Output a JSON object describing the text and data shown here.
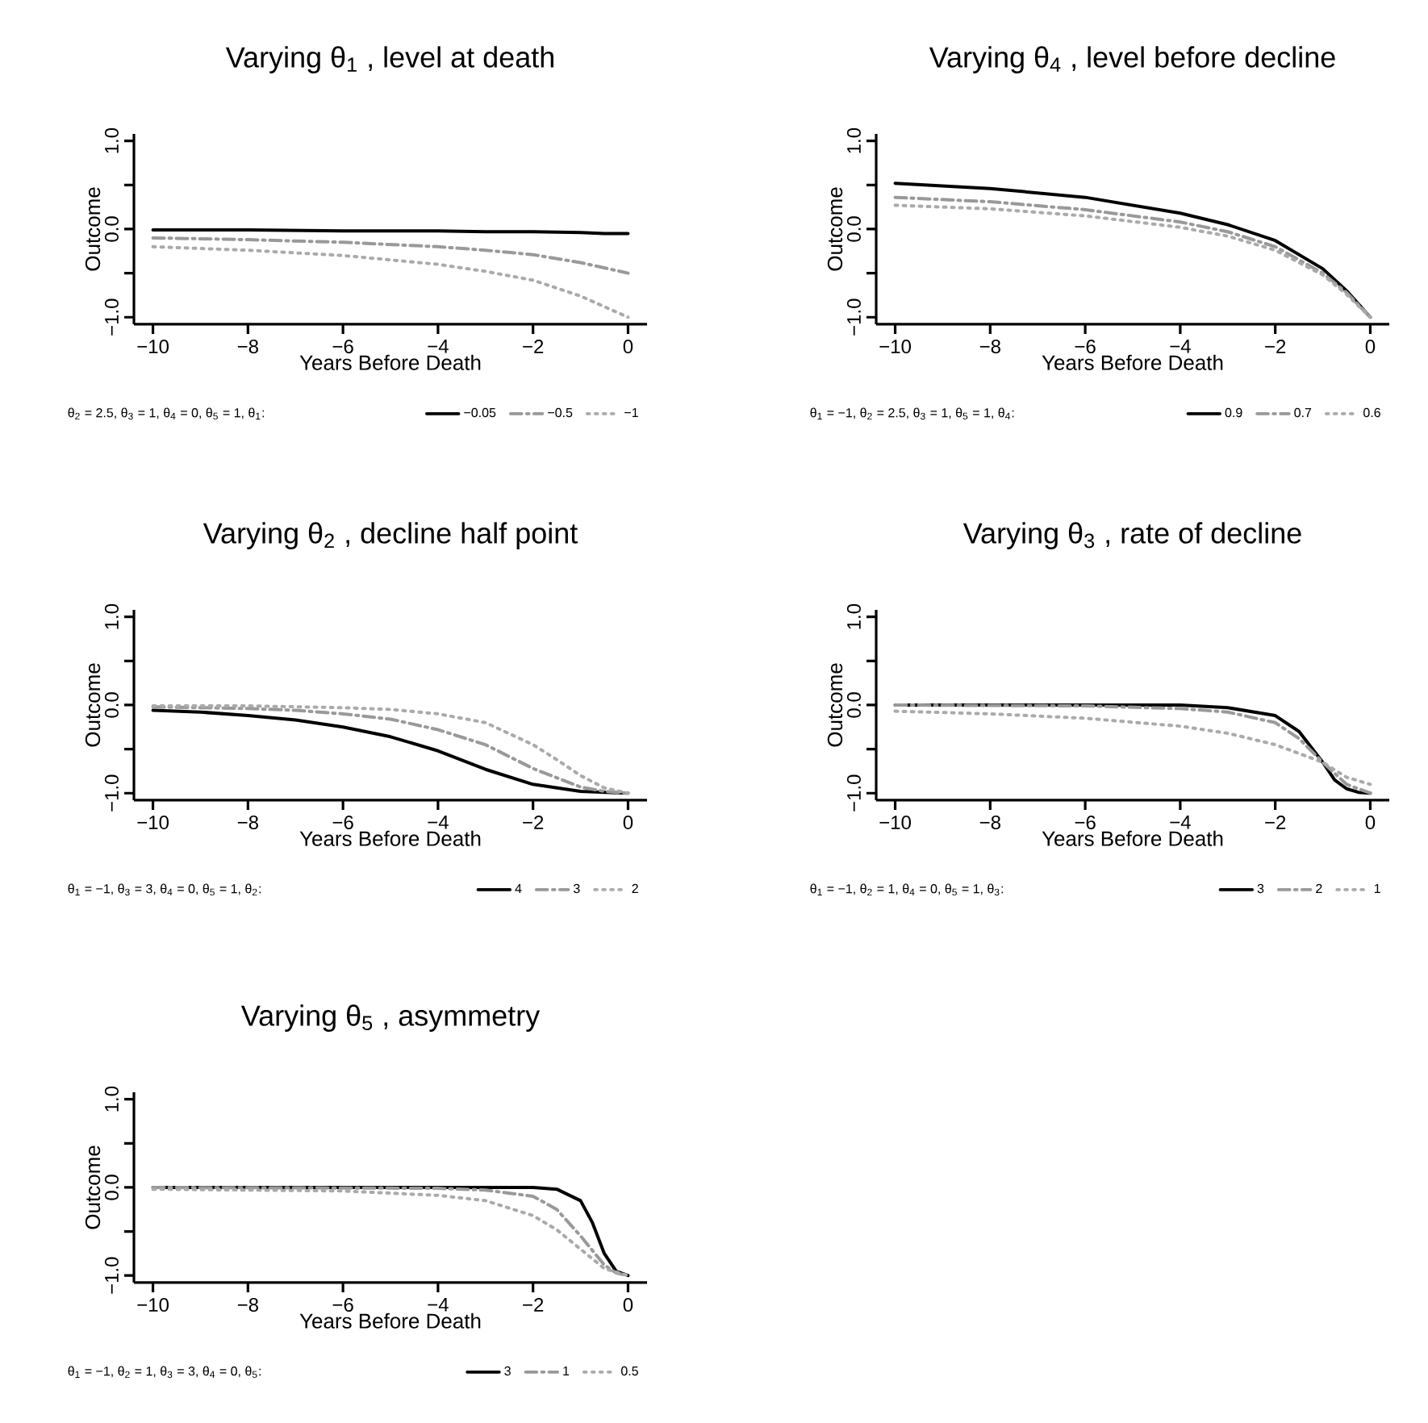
{
  "chart_data": [
    {
      "type": "line",
      "title": "Varying θ$_{1}$ , level at death",
      "xlabel": "Years Before Death",
      "ylabel": "Outcome",
      "legend_title": "θ$_{2}$ = 2.5, θ$_{3}$ = 1, θ$_{4}$ = 0, θ$_{5}$ = 1, θ$_{1}$:",
      "legend": "bottom",
      "xlim": [
        -10.4,
        0.4
      ],
      "ylim": [
        -1.08,
        1.08
      ],
      "xticks": [
        {
          "value": -10,
          "label": "−10"
        },
        {
          "value": -8,
          "label": "−8"
        },
        {
          "value": -6,
          "label": "−6"
        },
        {
          "value": -4,
          "label": "−4"
        },
        {
          "value": -2,
          "label": "−2"
        },
        0
      ],
      "yticks": [
        {
          "value": -1,
          "label": "−1.0"
        },
        {
          "value": -0.5,
          "label": null
        },
        {
          "value": 0,
          "label": "0.0"
        },
        {
          "value": 0.5,
          "label": null
        },
        {
          "value": 1,
          "label": "1.0"
        }
      ],
      "series": [
        {
          "name": "−0.05",
          "color": "#000000",
          "line_style": "solid",
          "x": [
            -10,
            -8,
            -6,
            -4,
            -3,
            -2,
            -1,
            -0.5,
            0
          ],
          "values": [
            -0.01,
            -0.01,
            -0.02,
            -0.02,
            -0.03,
            -0.03,
            -0.04,
            -0.05,
            -0.05
          ]
        },
        {
          "name": "−0.5",
          "color": "#999999",
          "line_style": "dashed",
          "x": [
            -10,
            -8,
            -6,
            -4,
            -3,
            -2,
            -1,
            -0.5,
            0
          ],
          "values": [
            -0.1,
            -0.12,
            -0.15,
            -0.2,
            -0.24,
            -0.29,
            -0.38,
            -0.44,
            -0.5
          ]
        },
        {
          "name": "−1",
          "color": "#aaaaaa",
          "line_style": "dotted",
          "x": [
            -10,
            -8,
            -6,
            -4,
            -3,
            -2,
            -1,
            -0.5,
            0
          ],
          "values": [
            -0.2,
            -0.24,
            -0.3,
            -0.4,
            -0.48,
            -0.58,
            -0.76,
            -0.88,
            -1.0
          ]
        }
      ]
    },
    {
      "type": "line",
      "title": "Varying θ$_{4}$ , level before decline",
      "xlabel": "Years Before Death",
      "ylabel": "Outcome",
      "legend_title": "θ$_{1}$ = −1, θ$_{2}$ = 2.5, θ$_{3}$ = 1, θ$_{5}$ = 1, θ$_{4}$:",
      "legend": "bottom",
      "xlim": [
        -10.4,
        0.4
      ],
      "ylim": [
        -1.08,
        1.08
      ],
      "xticks": [
        {
          "value": -10,
          "label": "−10"
        },
        {
          "value": -8,
          "label": "−8"
        },
        {
          "value": -6,
          "label": "−6"
        },
        {
          "value": -4,
          "label": "−4"
        },
        {
          "value": -2,
          "label": "−2"
        },
        0
      ],
      "yticks": [
        {
          "value": -1,
          "label": "−1.0"
        },
        {
          "value": -0.5,
          "label": null
        },
        {
          "value": 0,
          "label": "0.0"
        },
        {
          "value": 0.5,
          "label": null
        },
        {
          "value": 1,
          "label": "1.0"
        }
      ],
      "series": [
        {
          "name": "0.9",
          "color": "#000000",
          "line_style": "solid",
          "x": [
            -10,
            -8,
            -6,
            -4,
            -3,
            -2,
            -1,
            -0.5,
            0
          ],
          "values": [
            0.52,
            0.46,
            0.36,
            0.18,
            0.05,
            -0.13,
            -0.45,
            -0.7,
            -1.0
          ]
        },
        {
          "name": "0.7",
          "color": "#999999",
          "line_style": "dashed",
          "x": [
            -10,
            -8,
            -6,
            -4,
            -3,
            -2,
            -1,
            -0.5,
            0
          ],
          "values": [
            0.36,
            0.31,
            0.22,
            0.08,
            -0.03,
            -0.2,
            -0.5,
            -0.72,
            -1.0
          ]
        },
        {
          "name": "0.6",
          "color": "#aaaaaa",
          "line_style": "dotted",
          "x": [
            -10,
            -8,
            -6,
            -4,
            -3,
            -2,
            -1,
            -0.5,
            0
          ],
          "values": [
            0.27,
            0.23,
            0.15,
            0.02,
            -0.08,
            -0.24,
            -0.52,
            -0.74,
            -1.0
          ]
        }
      ]
    },
    {
      "type": "line",
      "title": "Varying θ$_{2}$ , decline half point",
      "xlabel": "Years Before Death",
      "ylabel": "Outcome",
      "legend_title": "θ$_{1}$ = −1, θ$_{3}$ = 3, θ$_{4}$ = 0, θ$_{5}$ = 1, θ$_{2}$:",
      "legend": "bottom",
      "xlim": [
        -10.4,
        0.4
      ],
      "ylim": [
        -1.08,
        1.08
      ],
      "xticks": [
        {
          "value": -10,
          "label": "−10"
        },
        {
          "value": -8,
          "label": "−8"
        },
        {
          "value": -6,
          "label": "−6"
        },
        {
          "value": -4,
          "label": "−4"
        },
        {
          "value": -2,
          "label": "−2"
        },
        0
      ],
      "yticks": [
        {
          "value": -1,
          "label": "−1.0"
        },
        {
          "value": -0.5,
          "label": null
        },
        {
          "value": 0,
          "label": "0.0"
        },
        {
          "value": 0.5,
          "label": null
        },
        {
          "value": 1,
          "label": "1.0"
        }
      ],
      "series": [
        {
          "name": "4",
          "color": "#000000",
          "line_style": "solid",
          "x": [
            -10,
            -9,
            -8,
            -7,
            -6,
            -5,
            -4,
            -3,
            -2,
            -1,
            0
          ],
          "values": [
            -0.06,
            -0.08,
            -0.12,
            -0.17,
            -0.25,
            -0.36,
            -0.52,
            -0.73,
            -0.9,
            -0.98,
            -1.0
          ]
        },
        {
          "name": "3",
          "color": "#999999",
          "line_style": "dashed",
          "x": [
            -10,
            -8,
            -7,
            -6,
            -5,
            -4,
            -3,
            -2,
            -1,
            -0.5,
            0
          ],
          "values": [
            -0.02,
            -0.04,
            -0.06,
            -0.1,
            -0.16,
            -0.28,
            -0.45,
            -0.72,
            -0.93,
            -0.98,
            -1.0
          ]
        },
        {
          "name": "2",
          "color": "#aaaaaa",
          "line_style": "dotted",
          "x": [
            -10,
            -8,
            -6,
            -5,
            -4,
            -3,
            -2,
            -1.5,
            -1,
            -0.5,
            0
          ],
          "values": [
            -0.01,
            -0.01,
            -0.03,
            -0.05,
            -0.1,
            -0.2,
            -0.45,
            -0.62,
            -0.8,
            -0.94,
            -1.0
          ]
        }
      ]
    },
    {
      "type": "line",
      "title": "Varying θ$_{3}$ , rate of decline",
      "xlabel": "Years Before Death",
      "ylabel": "Outcome",
      "legend_title": "θ$_{1}$ = −1, θ$_{2}$ = 1, θ$_{4}$ = 0, θ$_{5}$ = 1, θ$_{3}$:",
      "legend": "bottom",
      "xlim": [
        -10.4,
        0.4
      ],
      "ylim": [
        -1.08,
        1.08
      ],
      "xticks": [
        {
          "value": -10,
          "label": "−10"
        },
        {
          "value": -8,
          "label": "−8"
        },
        {
          "value": -6,
          "label": "−6"
        },
        {
          "value": -4,
          "label": "−4"
        },
        {
          "value": -2,
          "label": "−2"
        },
        0
      ],
      "yticks": [
        {
          "value": -1,
          "label": "−1.0"
        },
        {
          "value": -0.5,
          "label": null
        },
        {
          "value": 0,
          "label": "0.0"
        },
        {
          "value": 0.5,
          "label": null
        },
        {
          "value": 1,
          "label": "1.0"
        }
      ],
      "series": [
        {
          "name": "3",
          "color": "#000000",
          "line_style": "solid",
          "x": [
            -10,
            -6,
            -4,
            -3,
            -2,
            -1.5,
            -1,
            -0.75,
            -0.5,
            -0.25,
            0
          ],
          "values": [
            0.0,
            0.0,
            0.0,
            -0.03,
            -0.12,
            -0.3,
            -0.65,
            -0.85,
            -0.95,
            -0.99,
            -1.0
          ]
        },
        {
          "name": "2",
          "color": "#999999",
          "line_style": "dashed",
          "x": [
            -10,
            -6,
            -4,
            -3,
            -2,
            -1.5,
            -1,
            -0.5,
            0
          ],
          "values": [
            0.0,
            -0.01,
            -0.04,
            -0.08,
            -0.2,
            -0.38,
            -0.65,
            -0.9,
            -1.0
          ]
        },
        {
          "name": "1",
          "color": "#aaaaaa",
          "line_style": "dotted",
          "x": [
            -10,
            -8,
            -6,
            -4,
            -3,
            -2,
            -1,
            -0.5,
            0
          ],
          "values": [
            -0.07,
            -0.1,
            -0.15,
            -0.24,
            -0.32,
            -0.45,
            -0.65,
            -0.82,
            -0.9
          ]
        }
      ]
    },
    {
      "type": "line",
      "title": "Varying θ$_{5}$ , asymmetry",
      "xlabel": "Years Before Death",
      "ylabel": "Outcome",
      "legend_title": "θ$_{1}$ = −1, θ$_{2}$ = 1, θ$_{3}$ = 3, θ$_{4}$ = 0, θ$_{5}$:",
      "legend": "bottom",
      "xlim": [
        -10.4,
        0.4
      ],
      "ylim": [
        -1.08,
        1.08
      ],
      "xticks": [
        {
          "value": -10,
          "label": "−10"
        },
        {
          "value": -8,
          "label": "−8"
        },
        {
          "value": -6,
          "label": "−6"
        },
        {
          "value": -4,
          "label": "−4"
        },
        {
          "value": -2,
          "label": "−2"
        },
        0
      ],
      "yticks": [
        {
          "value": -1,
          "label": "−1.0"
        },
        {
          "value": -0.5,
          "label": null
        },
        {
          "value": 0,
          "label": "0.0"
        },
        {
          "value": 0.5,
          "label": null
        },
        {
          "value": 1,
          "label": "1.0"
        }
      ],
      "series": [
        {
          "name": "3",
          "color": "#000000",
          "line_style": "solid",
          "x": [
            -10,
            -4,
            -2,
            -1.5,
            -1,
            -0.75,
            -0.5,
            -0.25,
            0
          ],
          "values": [
            0.0,
            0.0,
            0.0,
            -0.02,
            -0.15,
            -0.4,
            -0.75,
            -0.95,
            -1.0
          ]
        },
        {
          "name": "1",
          "color": "#999999",
          "line_style": "dashed",
          "x": [
            -10,
            -4,
            -3,
            -2,
            -1.5,
            -1,
            -0.5,
            -0.25,
            0
          ],
          "values": [
            0.0,
            -0.01,
            -0.03,
            -0.1,
            -0.25,
            -0.55,
            -0.88,
            -0.97,
            -1.0
          ]
        },
        {
          "name": "0.5",
          "color": "#aaaaaa",
          "line_style": "dotted",
          "x": [
            -10,
            -6,
            -4,
            -3,
            -2,
            -1.5,
            -1,
            -0.5,
            0
          ],
          "values": [
            -0.02,
            -0.04,
            -0.09,
            -0.15,
            -0.32,
            -0.48,
            -0.7,
            -0.92,
            -1.0
          ]
        }
      ]
    }
  ]
}
